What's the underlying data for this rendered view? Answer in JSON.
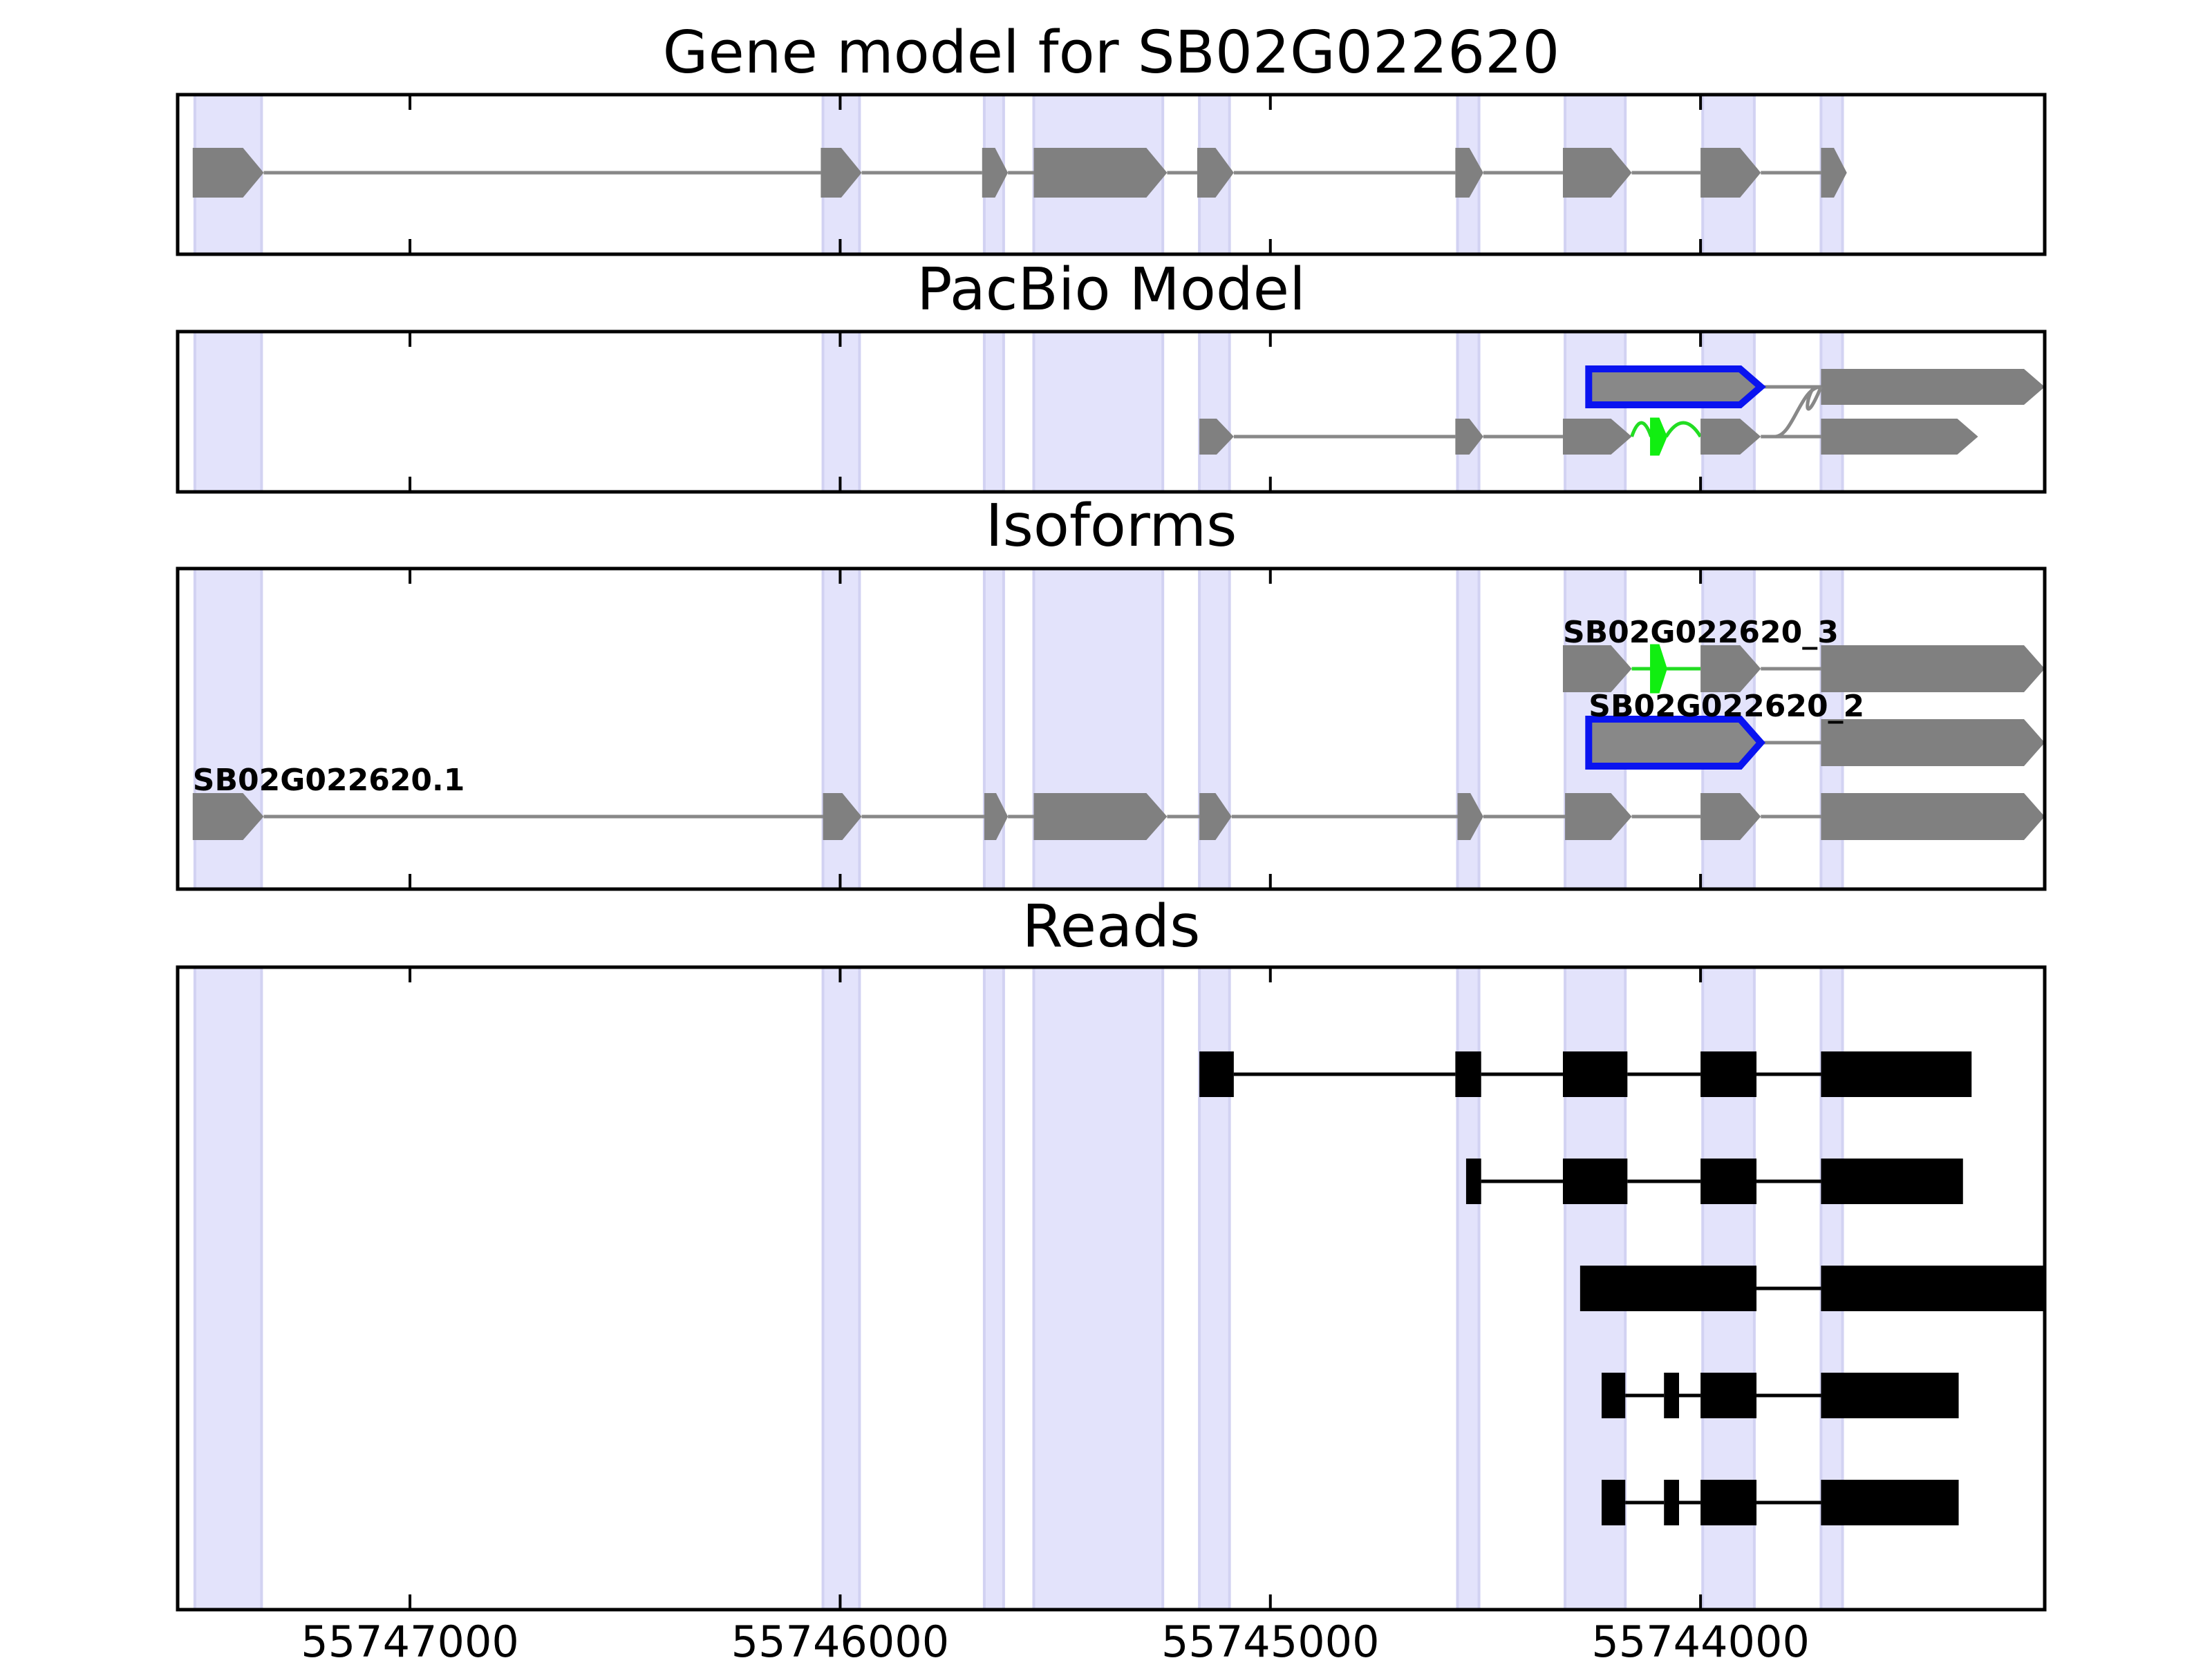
{
  "chart_data": {
    "type": "gene_model_tracks",
    "x_axis": {
      "range": [
        55747540,
        55743200
      ],
      "ticks": [
        55747000,
        55746000,
        55745000,
        55744000
      ],
      "tick_labels": [
        "55747000",
        "55746000",
        "55745000",
        "55744000"
      ]
    },
    "highlight_regions": [
      [
        55747500,
        55747345
      ],
      [
        55746040,
        55745955
      ],
      [
        55745665,
        55745620
      ],
      [
        55745550,
        55745250
      ],
      [
        55745165,
        55745095
      ],
      [
        55744565,
        55744515
      ],
      [
        55744315,
        55744175
      ],
      [
        55743995,
        55743875
      ],
      [
        55743720,
        55743670
      ]
    ],
    "panels": [
      {
        "title": "Gene model for SB02G022620",
        "tracks": [
          {
            "exons": [
              [
                55747505,
                55747340,
                "gray"
              ],
              [
                55746045,
                55745950,
                "gray"
              ],
              [
                55745670,
                55745610,
                "gray"
              ],
              [
                55745550,
                55745240,
                "gray"
              ],
              [
                55745170,
                55745085,
                "gray"
              ],
              [
                55744570,
                55744505,
                "gray"
              ],
              [
                55744320,
                55744160,
                "gray"
              ],
              [
                55744000,
                55743860,
                "gray"
              ],
              [
                55743720,
                55743660,
                "gray"
              ]
            ]
          }
        ]
      },
      {
        "title": "PacBio Model",
        "tracks": [
          {
            "exons": [
              [
                55744260,
                55743860,
                "blue-outline"
              ],
              [
                55743720,
                55743200,
                "gray"
              ]
            ]
          },
          {
            "exons": [
              [
                55745165,
                55745085,
                "gray"
              ],
              [
                55744570,
                55744505,
                "gray"
              ],
              [
                55744320,
                55744160,
                "gray"
              ],
              [
                55744115,
                55744080,
                "green"
              ],
              [
                55744000,
                55743860,
                "gray"
              ],
              [
                55743720,
                55743355,
                "gray"
              ]
            ]
          }
        ]
      },
      {
        "title": "Isoforms",
        "tracks": [
          {
            "label": "SB02G022620_3",
            "exons": [
              [
                55744320,
                55744160,
                "gray"
              ],
              [
                55744115,
                55744080,
                "green"
              ],
              [
                55744000,
                55743860,
                "gray"
              ],
              [
                55743720,
                55743200,
                "gray"
              ]
            ]
          },
          {
            "label": "SB02G022620_2",
            "exons": [
              [
                55744260,
                55743860,
                "blue-outline"
              ],
              [
                55743720,
                55743200,
                "gray"
              ]
            ]
          },
          {
            "label": "SB02G022620.1",
            "exons": [
              [
                55747505,
                55747340,
                "gray"
              ],
              [
                55746040,
                55745950,
                "gray"
              ],
              [
                55745665,
                55745610,
                "gray"
              ],
              [
                55745550,
                55745240,
                "gray"
              ],
              [
                55745165,
                55745090,
                "gray"
              ],
              [
                55744565,
                55744505,
                "gray"
              ],
              [
                55744315,
                55744160,
                "gray"
              ],
              [
                55744000,
                55743860,
                "gray"
              ],
              [
                55743720,
                55743200,
                "gray"
              ]
            ]
          }
        ]
      },
      {
        "title": "Reads",
        "tracks": [
          {
            "exons": [
              [
                55745165,
                55745085
              ],
              [
                55744570,
                55744510
              ],
              [
                55744320,
                55744170
              ],
              [
                55744000,
                55743870
              ],
              [
                55743720,
                55743370
              ]
            ]
          },
          {
            "exons": [
              [
                55744545,
                55744510
              ],
              [
                55744320,
                55744170
              ],
              [
                55744000,
                55743870
              ],
              [
                55743720,
                55743390
              ]
            ]
          },
          {
            "exons": [
              [
                55744280,
                55743870
              ],
              [
                55743720,
                55743200
              ]
            ]
          },
          {
            "exons": [
              [
                55744230,
                55744175
              ],
              [
                55744085,
                55744050
              ],
              [
                55744000,
                55743870
              ],
              [
                55743720,
                55743400
              ]
            ]
          },
          {
            "exons": [
              [
                55744230,
                55744175
              ],
              [
                55744085,
                55744050
              ],
              [
                55744000,
                55743870
              ],
              [
                55743720,
                55743400
              ]
            ]
          }
        ]
      }
    ]
  }
}
